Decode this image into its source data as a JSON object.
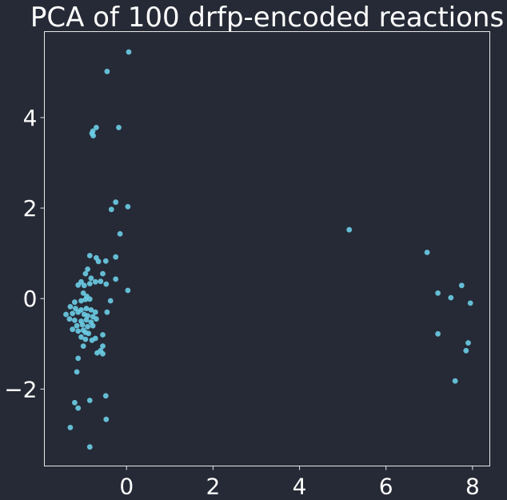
{
  "chart_data": {
    "type": "scatter",
    "title": "PCA of 100 drfp-encoded reactions",
    "xlabel": "",
    "ylabel": "",
    "xlim": [
      -1.9,
      8.4
    ],
    "ylim": [
      -3.7,
      5.9
    ],
    "grid": false,
    "xticks": [
      0,
      2,
      4,
      6,
      8
    ],
    "xtick_labels": [
      "0",
      "2",
      "4",
      "6",
      "8"
    ],
    "yticks": [
      -2,
      0,
      2,
      4
    ],
    "ytick_labels": [
      "−2",
      "0",
      "2",
      "4"
    ],
    "series": [
      {
        "color": "#6ccde6",
        "points": [
          [
            0.05,
            5.45
          ],
          [
            -0.45,
            5.02
          ],
          [
            -0.7,
            3.78
          ],
          [
            -0.18,
            3.78
          ],
          [
            -0.78,
            3.7
          ],
          [
            -0.8,
            3.65
          ],
          [
            -0.77,
            3.6
          ],
          [
            -0.25,
            2.13
          ],
          [
            0.03,
            2.03
          ],
          [
            -0.35,
            1.97
          ],
          [
            -0.15,
            1.43
          ],
          [
            5.15,
            1.52
          ],
          [
            6.95,
            1.02
          ],
          [
            7.75,
            0.29
          ],
          [
            7.2,
            0.12
          ],
          [
            7.5,
            0.02
          ],
          [
            7.95,
            -0.1
          ],
          [
            7.2,
            -0.78
          ],
          [
            7.9,
            -0.98
          ],
          [
            7.85,
            -1.15
          ],
          [
            7.6,
            -1.82
          ],
          [
            -0.85,
            0.95
          ],
          [
            -0.7,
            0.9
          ],
          [
            -0.65,
            0.82
          ],
          [
            -0.48,
            0.83
          ],
          [
            -0.25,
            0.92
          ],
          [
            -0.9,
            0.65
          ],
          [
            -0.95,
            0.55
          ],
          [
            -0.55,
            0.55
          ],
          [
            -0.82,
            0.45
          ],
          [
            -0.72,
            0.37
          ],
          [
            -0.6,
            0.38
          ],
          [
            -0.47,
            0.32
          ],
          [
            -0.25,
            0.43
          ],
          [
            -0.85,
            0.33
          ],
          [
            -1.05,
            0.37
          ],
          [
            -1.12,
            0.3
          ],
          [
            -0.98,
            0.29
          ],
          [
            0.03,
            0.18
          ],
          [
            -1.0,
            0.12
          ],
          [
            -0.92,
            0.05
          ],
          [
            -1.2,
            -0.08
          ],
          [
            -1.05,
            -0.05
          ],
          [
            -0.95,
            -0.02
          ],
          [
            -0.85,
            -0.01
          ],
          [
            -0.37,
            -0.05
          ],
          [
            -1.3,
            -0.18
          ],
          [
            -1.18,
            -0.22
          ],
          [
            -1.05,
            -0.25
          ],
          [
            -0.93,
            -0.22
          ],
          [
            -0.82,
            -0.25
          ],
          [
            -0.72,
            -0.3
          ],
          [
            -0.45,
            -0.3
          ],
          [
            -1.4,
            -0.35
          ],
          [
            -1.25,
            -0.33
          ],
          [
            -1.12,
            -0.3
          ],
          [
            -0.98,
            -0.35
          ],
          [
            -0.9,
            -0.38
          ],
          [
            -0.78,
            -0.4
          ],
          [
            -1.32,
            -0.45
          ],
          [
            -1.2,
            -0.48
          ],
          [
            -1.05,
            -0.5
          ],
          [
            -0.93,
            -0.47
          ],
          [
            -0.82,
            -0.52
          ],
          [
            -0.7,
            -0.45
          ],
          [
            -1.15,
            -0.6
          ],
          [
            -1.02,
            -0.58
          ],
          [
            -0.9,
            -0.62
          ],
          [
            -0.78,
            -0.6
          ],
          [
            -1.25,
            -0.68
          ],
          [
            -1.12,
            -0.72
          ],
          [
            -1.0,
            -0.7
          ],
          [
            -0.95,
            -0.75
          ],
          [
            -0.88,
            -0.77
          ],
          [
            -0.55,
            -0.8
          ],
          [
            -1.05,
            -0.85
          ],
          [
            -0.95,
            -0.9
          ],
          [
            -0.8,
            -0.92
          ],
          [
            -0.72,
            -0.88
          ],
          [
            -1.0,
            -1.05
          ],
          [
            -0.55,
            -1.05
          ],
          [
            -0.6,
            -1.15
          ],
          [
            -0.68,
            -1.2
          ],
          [
            -0.55,
            -1.22
          ],
          [
            -1.12,
            -1.32
          ],
          [
            -1.15,
            -1.62
          ],
          [
            -0.85,
            -2.25
          ],
          [
            -1.2,
            -2.3
          ],
          [
            -1.12,
            -2.42
          ],
          [
            -0.48,
            -2.15
          ],
          [
            -0.47,
            -2.67
          ],
          [
            -1.3,
            -2.85
          ],
          [
            -0.85,
            -3.28
          ]
        ]
      }
    ]
  }
}
